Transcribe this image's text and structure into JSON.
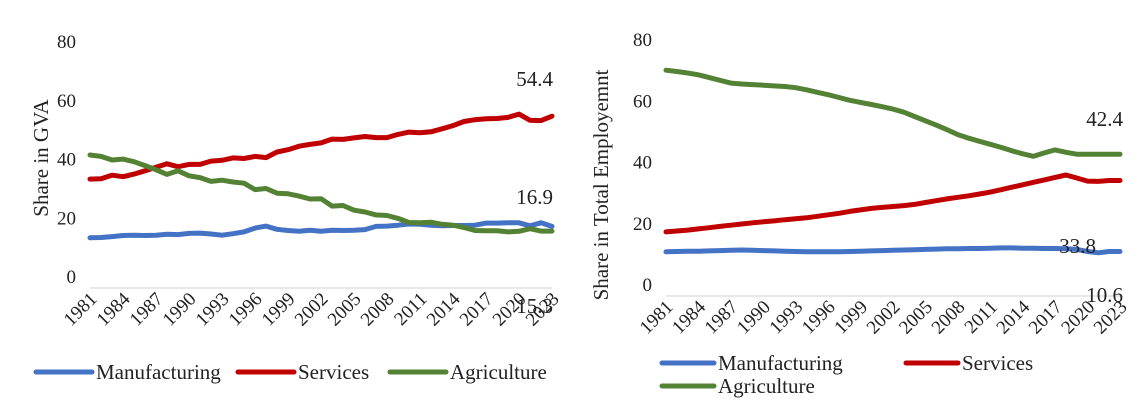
{
  "chart_data": [
    {
      "type": "line",
      "title": "",
      "xlabel": "",
      "ylabel": "Share in GVA",
      "ylim": [
        0,
        80
      ],
      "yticks": [
        0,
        20,
        40,
        60,
        80
      ],
      "grid": false,
      "legend_placement": "bottom",
      "x": [
        1981,
        1982,
        1983,
        1984,
        1985,
        1986,
        1987,
        1988,
        1989,
        1990,
        1991,
        1992,
        1993,
        1994,
        1995,
        1996,
        1997,
        1998,
        1999,
        2000,
        2001,
        2002,
        2003,
        2004,
        2005,
        2006,
        2007,
        2008,
        2009,
        2010,
        2011,
        2012,
        2013,
        2014,
        2015,
        2016,
        2017,
        2018,
        2019,
        2020,
        2021,
        2022,
        2023
      ],
      "x_tick_labels": [
        "1981",
        "1984",
        "1987",
        "1990",
        "1993",
        "1996",
        "1999",
        "2002",
        "2005",
        "2008",
        "2011",
        "2014",
        "2017",
        "2020",
        "2023"
      ],
      "series": [
        {
          "name": "Manufacturing",
          "color": "#4472C4",
          "values": [
            13.0,
            13.1,
            13.4,
            13.8,
            13.9,
            13.8,
            13.9,
            14.2,
            14.1,
            14.5,
            14.6,
            14.3,
            13.9,
            14.4,
            15.0,
            16.3,
            17.0,
            15.9,
            15.5,
            15.2,
            15.6,
            15.2,
            15.6,
            15.5,
            15.6,
            15.8,
            16.9,
            17.0,
            17.3,
            17.7,
            17.6,
            17.3,
            17.1,
            17.2,
            17.2,
            17.3,
            18.0,
            18.0,
            18.1,
            18.1,
            17.1,
            18.1,
            16.9
          ]
        },
        {
          "name": "Services",
          "color": "#C00000",
          "values": [
            33.0,
            33.1,
            34.3,
            33.8,
            34.7,
            35.8,
            37.0,
            38.2,
            37.2,
            38.0,
            38.0,
            39.1,
            39.4,
            40.2,
            40.0,
            40.7,
            40.3,
            42.2,
            43.0,
            44.2,
            44.8,
            45.3,
            46.6,
            46.5,
            47.0,
            47.5,
            47.1,
            47.1,
            48.2,
            49.0,
            48.8,
            49.1,
            50.1,
            51.2,
            52.6,
            53.2,
            53.5,
            53.6,
            54.0,
            55.1,
            53.0,
            52.9,
            54.4
          ]
        },
        {
          "name": "Agriculture",
          "color": "#548235",
          "values": [
            41.2,
            40.7,
            39.5,
            39.8,
            38.9,
            37.6,
            36.2,
            34.6,
            35.8,
            34.1,
            33.5,
            32.2,
            32.6,
            32.0,
            31.6,
            29.4,
            29.8,
            28.2,
            28.0,
            27.2,
            26.2,
            26.3,
            23.8,
            24.0,
            22.4,
            21.8,
            20.8,
            20.6,
            19.6,
            18.2,
            18.1,
            18.3,
            17.6,
            17.3,
            16.5,
            15.5,
            15.4,
            15.4,
            15.0,
            15.2,
            16.1,
            15.3,
            15.3
          ]
        }
      ],
      "annotations": [
        {
          "text": "54.4",
          "series": "Services"
        },
        {
          "text": "16.9",
          "series": "Manufacturing"
        },
        {
          "text": "15.3",
          "series": "Agriculture"
        }
      ]
    },
    {
      "type": "line",
      "title": "",
      "xlabel": "",
      "ylabel": "Share in Total Employemnt",
      "ylim": [
        0,
        80
      ],
      "yticks": [
        0,
        20,
        40,
        60,
        80
      ],
      "grid": false,
      "legend_placement": "bottom",
      "x": [
        1981,
        1982,
        1983,
        1984,
        1985,
        1986,
        1987,
        1988,
        1989,
        1990,
        1991,
        1992,
        1993,
        1994,
        1995,
        1996,
        1997,
        1998,
        1999,
        2000,
        2001,
        2002,
        2003,
        2004,
        2005,
        2006,
        2007,
        2008,
        2009,
        2010,
        2011,
        2012,
        2013,
        2014,
        2015,
        2016,
        2017,
        2018,
        2019,
        2020,
        2021,
        2022,
        2023
      ],
      "x_tick_labels": [
        "1981",
        "1984",
        "1987",
        "1990",
        "1993",
        "1996",
        "1999",
        "2002",
        "2005",
        "2008",
        "2011",
        "2014",
        "2017",
        "2020",
        "2023"
      ],
      "series": [
        {
          "name": "Manufacturing",
          "color": "#4472C4",
          "values": [
            10.5,
            10.6,
            10.7,
            10.7,
            10.8,
            10.9,
            11.0,
            11.1,
            11.0,
            10.9,
            10.8,
            10.7,
            10.6,
            10.5,
            10.5,
            10.5,
            10.5,
            10.6,
            10.7,
            10.8,
            10.9,
            11.0,
            11.1,
            11.2,
            11.3,
            11.4,
            11.5,
            11.5,
            11.6,
            11.6,
            11.7,
            11.8,
            11.8,
            11.7,
            11.7,
            11.6,
            11.6,
            11.5,
            11.3,
            10.6,
            10.2,
            10.6,
            10.6
          ]
        },
        {
          "name": "Services",
          "color": "#C00000",
          "values": [
            17.0,
            17.3,
            17.6,
            18.0,
            18.4,
            18.8,
            19.2,
            19.6,
            20.0,
            20.3,
            20.6,
            21.0,
            21.3,
            21.6,
            22.1,
            22.6,
            23.1,
            23.7,
            24.2,
            24.7,
            25.0,
            25.3,
            25.6,
            26.0,
            26.6,
            27.2,
            27.8,
            28.3,
            28.8,
            29.4,
            30.0,
            30.8,
            31.6,
            32.4,
            33.2,
            34.0,
            34.8,
            35.6,
            34.6,
            33.6,
            33.5,
            33.8,
            33.8
          ]
        },
        {
          "name": "Agriculture",
          "color": "#548235",
          "values": [
            69.8,
            69.4,
            68.9,
            68.3,
            67.4,
            66.5,
            65.6,
            65.3,
            65.1,
            64.9,
            64.7,
            64.5,
            64.1,
            63.4,
            62.6,
            61.8,
            60.9,
            60.0,
            59.3,
            58.6,
            57.9,
            57.1,
            56.1,
            54.7,
            53.3,
            51.9,
            50.4,
            48.8,
            47.6,
            46.6,
            45.6,
            44.6,
            43.5,
            42.5,
            41.7,
            42.8,
            43.8,
            43.0,
            42.4,
            42.4,
            42.4,
            42.4,
            42.4
          ]
        }
      ],
      "annotations": [
        {
          "text": "42.4",
          "series": "Agriculture"
        },
        {
          "text": "33.8",
          "series": "Services"
        },
        {
          "text": "10.6",
          "series": "Manufacturing"
        }
      ]
    }
  ]
}
